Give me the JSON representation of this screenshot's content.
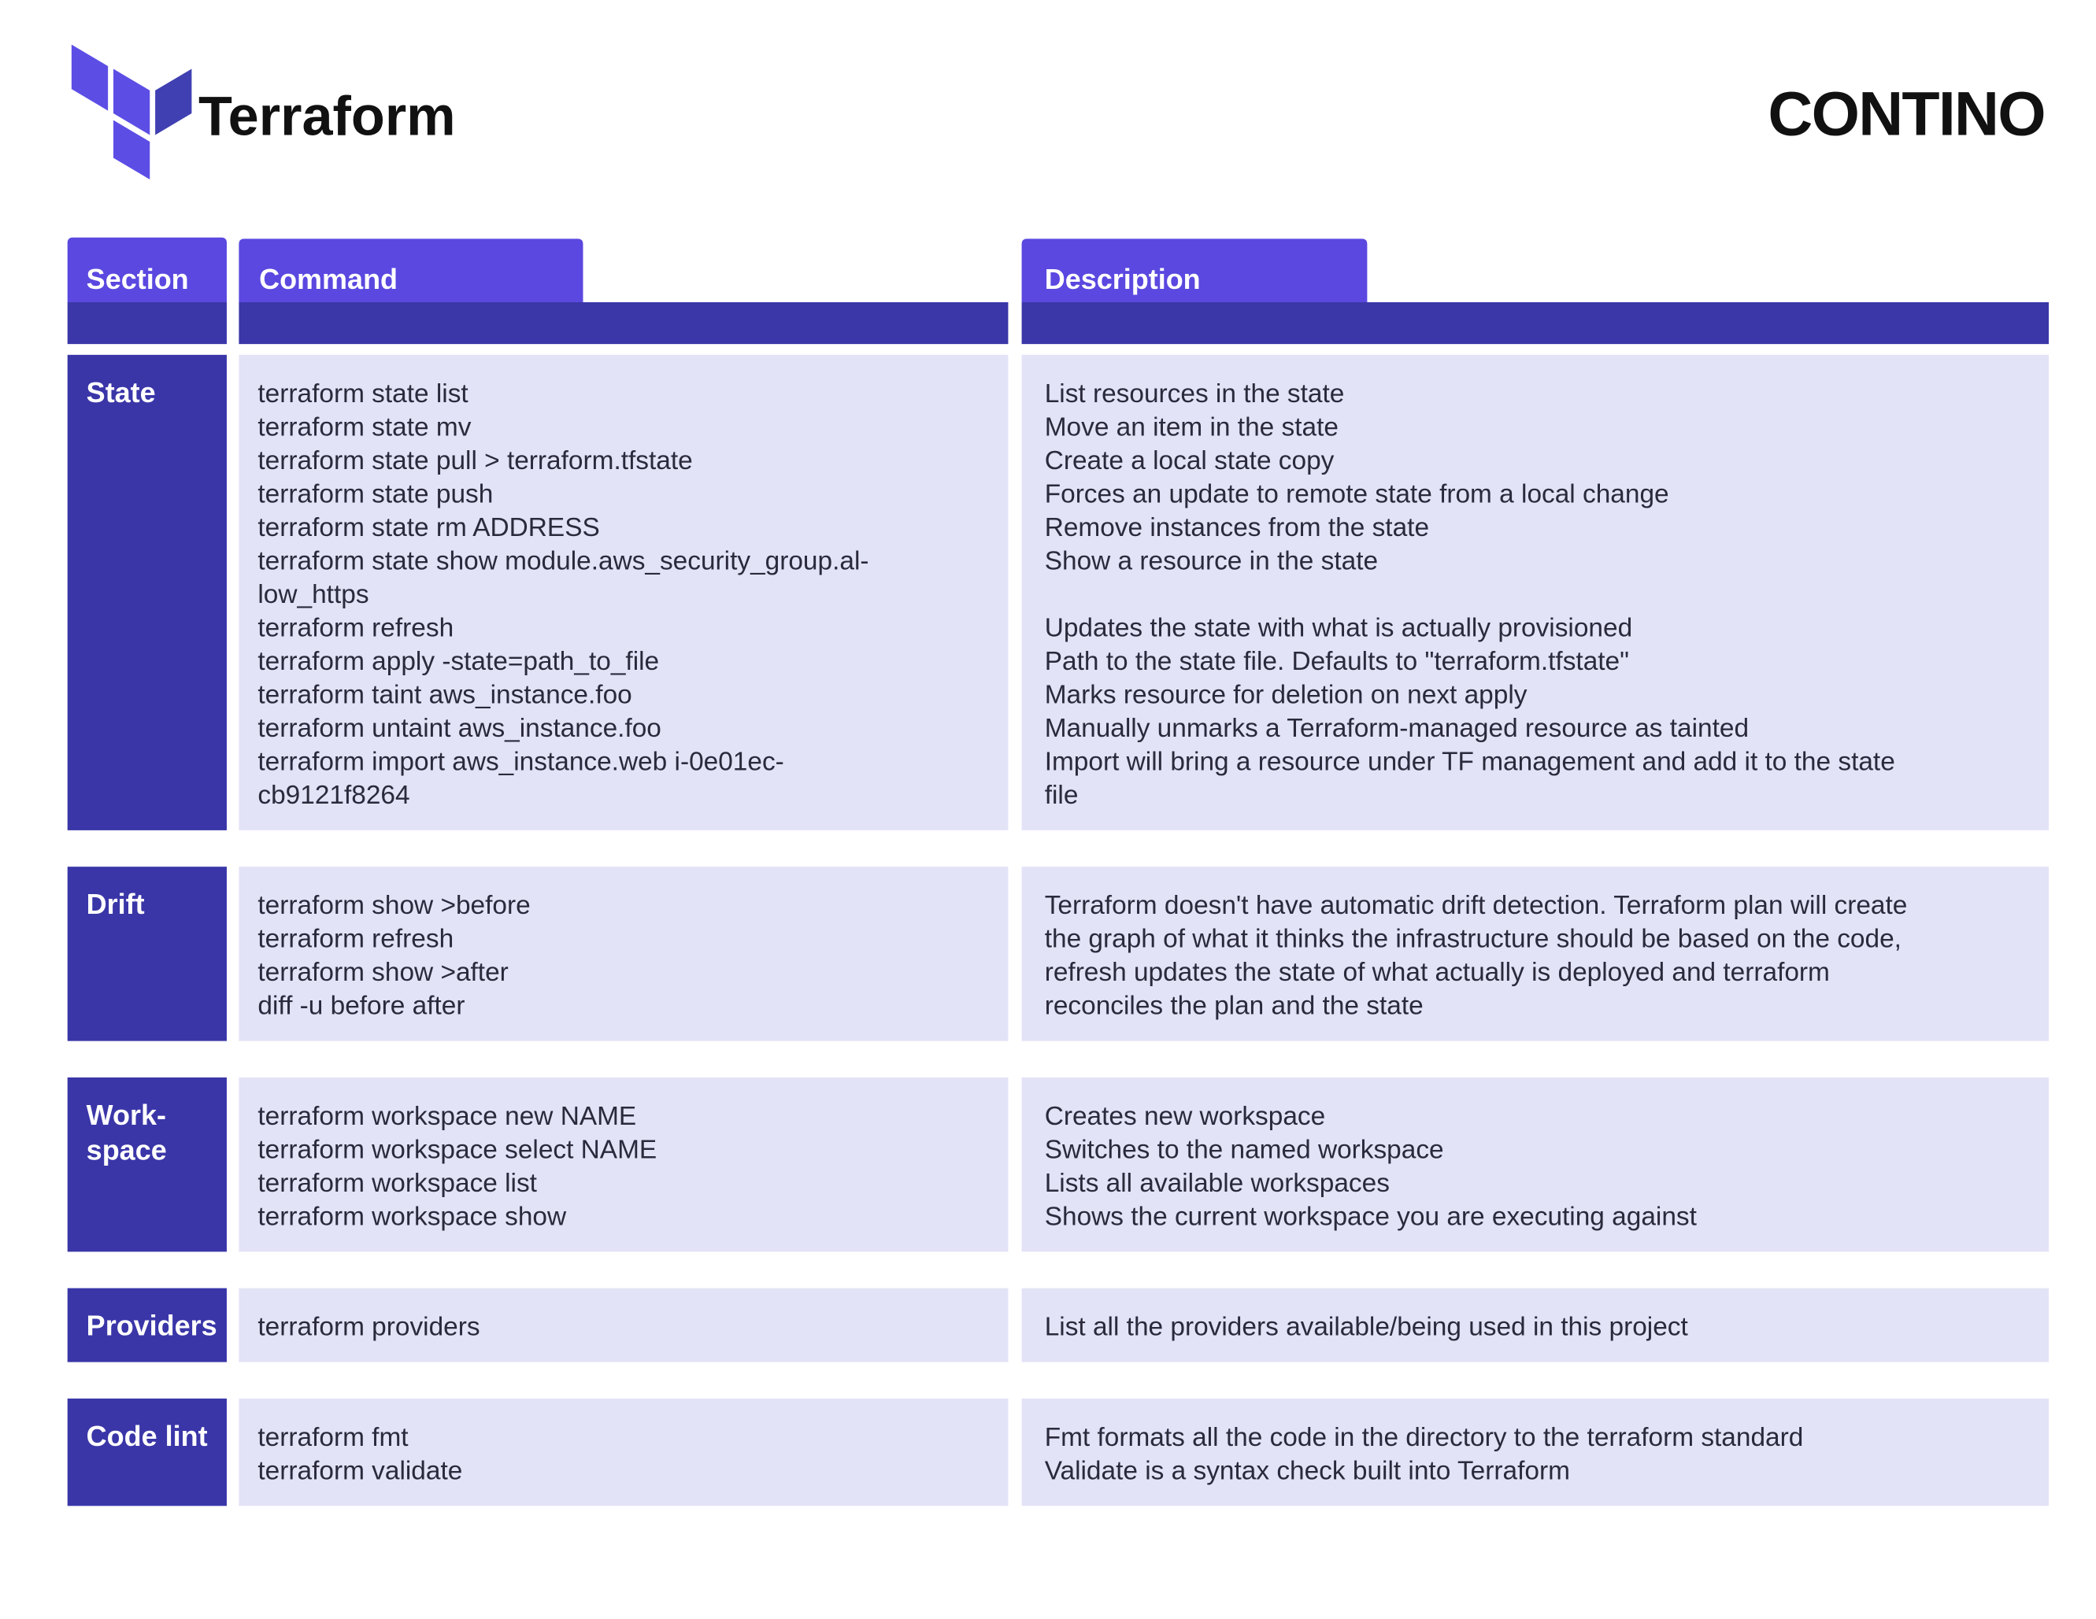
{
  "header": {
    "logo": "Terraform",
    "brand": "CONTINO"
  },
  "table": {
    "columns": [
      "Section",
      "Command",
      "Description"
    ],
    "rows": [
      {
        "section": [
          "State"
        ],
        "entries": [
          {
            "command": [
              "terraform state list"
            ],
            "description": [
              "List resources in the state"
            ]
          },
          {
            "command": [
              "terraform state mv"
            ],
            "description": [
              "Move an item in the state"
            ]
          },
          {
            "command": [
              "terraform state pull > terraform.tfstate"
            ],
            "description": [
              "Create a local state copy"
            ]
          },
          {
            "command": [
              "terraform state push"
            ],
            "description": [
              "Forces an update to remote state from a local change"
            ]
          },
          {
            "command": [
              "terraform state rm ADDRESS"
            ],
            "description": [
              "Remove instances from the state"
            ]
          },
          {
            "command": [
              "terraform state show module.aws_security_group.al-",
              "low_https"
            ],
            "description": [
              "Show a resource in the state"
            ]
          },
          {
            "command": [
              "terraform refresh"
            ],
            "description": [
              "Updates the state with what is actually provisioned"
            ]
          },
          {
            "command": [
              "terraform apply -state=path_to_file"
            ],
            "description": [
              "Path to the state file. Defaults to \"terraform.tfstate\""
            ]
          },
          {
            "command": [
              "terraform taint aws_instance.foo"
            ],
            "description": [
              "Marks resource for deletion on next apply"
            ]
          },
          {
            "command": [
              "terraform untaint aws_instance.foo"
            ],
            "description": [
              "Manually unmarks a Terraform-managed resource as tainted"
            ]
          },
          {
            "command": [
              "terraform import aws_instance.web i-0e01ec-",
              "cb9121f8264"
            ],
            "description": [
              "Import will bring a resource under TF management and add it to the state",
              "file"
            ]
          }
        ]
      },
      {
        "section": [
          "Drift"
        ],
        "entries": [
          {
            "command": [
              "terraform show >before",
              "terraform refresh",
              "terraform show >after",
              "diff -u before after"
            ],
            "description": [
              "Terraform doesn't have automatic drift detection. Terraform plan will create",
              "the graph of what it thinks the infrastructure should be based on the code,",
              "refresh updates the state of what actually is deployed and terraform",
              "reconciles the plan and the state"
            ]
          }
        ]
      },
      {
        "section": [
          "Work-",
          "space"
        ],
        "entries": [
          {
            "command": [
              "terraform workspace new NAME"
            ],
            "description": [
              "Creates new workspace"
            ]
          },
          {
            "command": [
              "terraform workspace select NAME"
            ],
            "description": [
              "Switches to the named workspace"
            ]
          },
          {
            "command": [
              "terraform workspace list"
            ],
            "description": [
              "Lists all available workspaces"
            ]
          },
          {
            "command": [
              "terraform workspace show"
            ],
            "description": [
              "Shows the current workspace you are executing against"
            ]
          }
        ]
      },
      {
        "section": [
          "Providers"
        ],
        "entries": [
          {
            "command": [
              "terraform providers"
            ],
            "description": [
              "List all the providers available/being used in this project"
            ]
          }
        ]
      },
      {
        "section": [
          "Code lint"
        ],
        "entries": [
          {
            "command": [
              "terraform fmt"
            ],
            "description": [
              "Fmt formats all the code in the directory to the terraform standard"
            ]
          },
          {
            "command": [
              "terraform validate"
            ],
            "description": [
              "Validate is a syntax check built into Terraform"
            ]
          }
        ]
      }
    ]
  }
}
